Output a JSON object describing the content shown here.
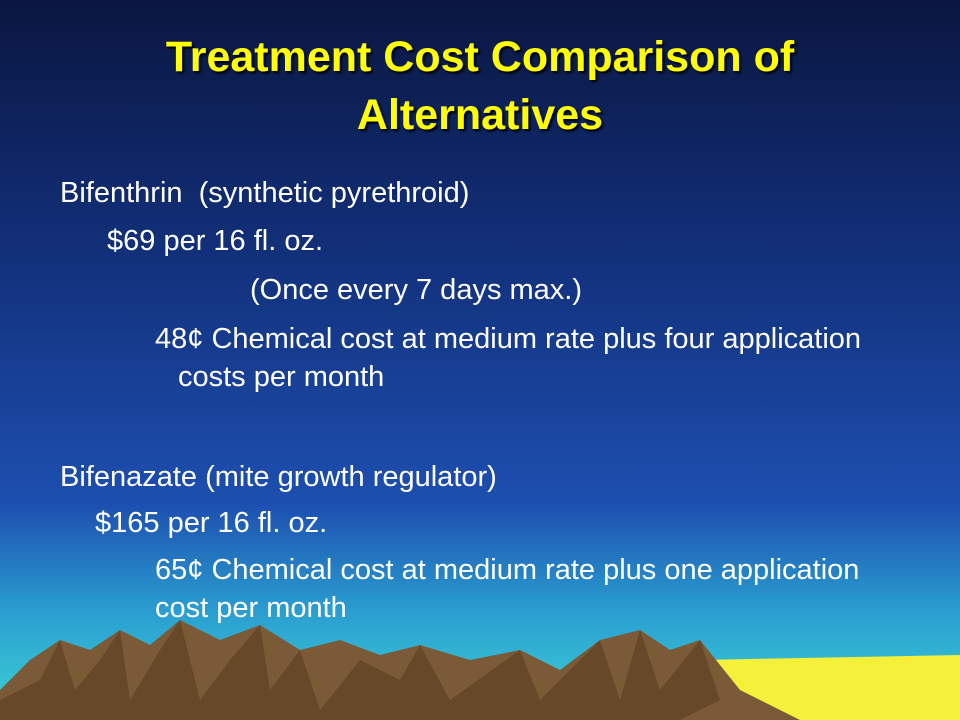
{
  "title": "Treatment Cost Comparison of Alternatives",
  "sections": [
    {
      "heading": "Bifenthrin  (synthetic pyrethroid)",
      "price": "$69 per 16 fl. oz.",
      "note": "(Once every 7 days max.)",
      "cost": "48¢ Chemical cost at medium rate plus four application costs per month"
    },
    {
      "heading": "Bifenazate (mite growth regulator)",
      "price": "$165 per 16 fl. oz.",
      "cost": "65¢ Chemical cost at medium rate plus one application cost per month"
    }
  ]
}
